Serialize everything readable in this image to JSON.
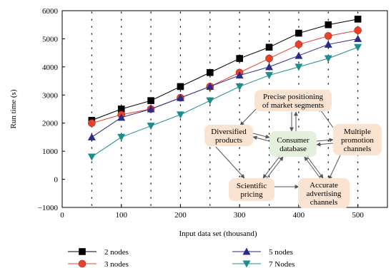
{
  "chart_data": {
    "type": "line",
    "xlabel": "Input data set (thousand)",
    "ylabel": "Run time (s)",
    "xlim": [
      0,
      550
    ],
    "ylim": [
      -1000,
      6000
    ],
    "xticks": [
      0,
      100,
      200,
      300,
      400,
      500
    ],
    "yticks": [
      -1000,
      0,
      1000,
      2000,
      3000,
      4000,
      5000,
      6000
    ],
    "grid": "dotted vertical",
    "legend_position": "below",
    "x": [
      50,
      100,
      150,
      200,
      250,
      300,
      350,
      400,
      450,
      500
    ],
    "series": [
      {
        "name": "2 nodes",
        "color": "#000000",
        "marker": "square",
        "values": [
          2100,
          2500,
          2800,
          3300,
          3800,
          4300,
          4700,
          5200,
          5500,
          5700
        ]
      },
      {
        "name": "3 nodes",
        "color": "#e8412c",
        "marker": "circle",
        "values": [
          2000,
          2300,
          2500,
          2900,
          3300,
          3800,
          4300,
          4800,
          5100,
          5300
        ]
      },
      {
        "name": "5 nodes",
        "color": "#2a2a8a",
        "marker": "triangle-up",
        "values": [
          1500,
          2200,
          2500,
          2900,
          3300,
          3700,
          4000,
          4400,
          4800,
          5000
        ]
      },
      {
        "name": "7 Nodes",
        "color": "#1f8c8c",
        "marker": "triangle-down",
        "values": [
          800,
          1500,
          1900,
          2300,
          2800,
          3300,
          3700,
          4000,
          4300,
          4700
        ]
      }
    ]
  },
  "diagram": {
    "nodes": [
      {
        "id": "precise",
        "lines": [
          "Precise positioning",
          "of market segments"
        ]
      },
      {
        "id": "diversified",
        "lines": [
          "Diversified",
          "products"
        ]
      },
      {
        "id": "consumer",
        "lines": [
          "Consumer",
          "database"
        ]
      },
      {
        "id": "multiple",
        "lines": [
          "Multiple",
          "promotion",
          "channels"
        ]
      },
      {
        "id": "scientific",
        "lines": [
          "Scientific",
          "pricing"
        ]
      },
      {
        "id": "accurate",
        "lines": [
          "Accurate",
          "advertising",
          "channels"
        ]
      }
    ],
    "colors": {
      "peach": "#fbe3d2",
      "green": "#e4efdc"
    }
  }
}
